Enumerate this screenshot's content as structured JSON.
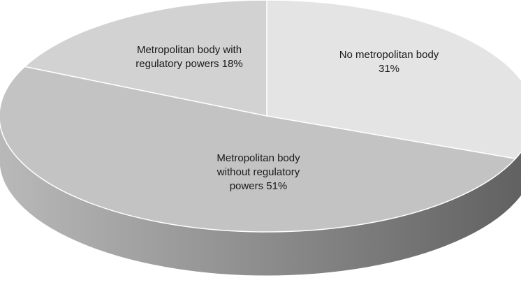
{
  "chart_data": {
    "type": "pie",
    "style": "3d",
    "slices": [
      {
        "key": "no_metropolitan_body",
        "label_lines": [
          "No metropolitan body",
          "31%"
        ],
        "value": 31,
        "color": "#e4e4e4"
      },
      {
        "key": "without_regulatory_powers",
        "label_lines": [
          "Metropolitan body",
          "without regulatory",
          "powers 51%"
        ],
        "value": 51,
        "color": "#c3c3c3"
      },
      {
        "key": "with_regulatory_powers",
        "label_lines": [
          "Metropolitan body with",
          "regulatory powers 18%"
        ],
        "value": 18,
        "color": "#d2d2d2"
      }
    ],
    "side_colors": {
      "light": "#b9b9b9",
      "dark": "#5f5f5f"
    },
    "legend": "none"
  }
}
